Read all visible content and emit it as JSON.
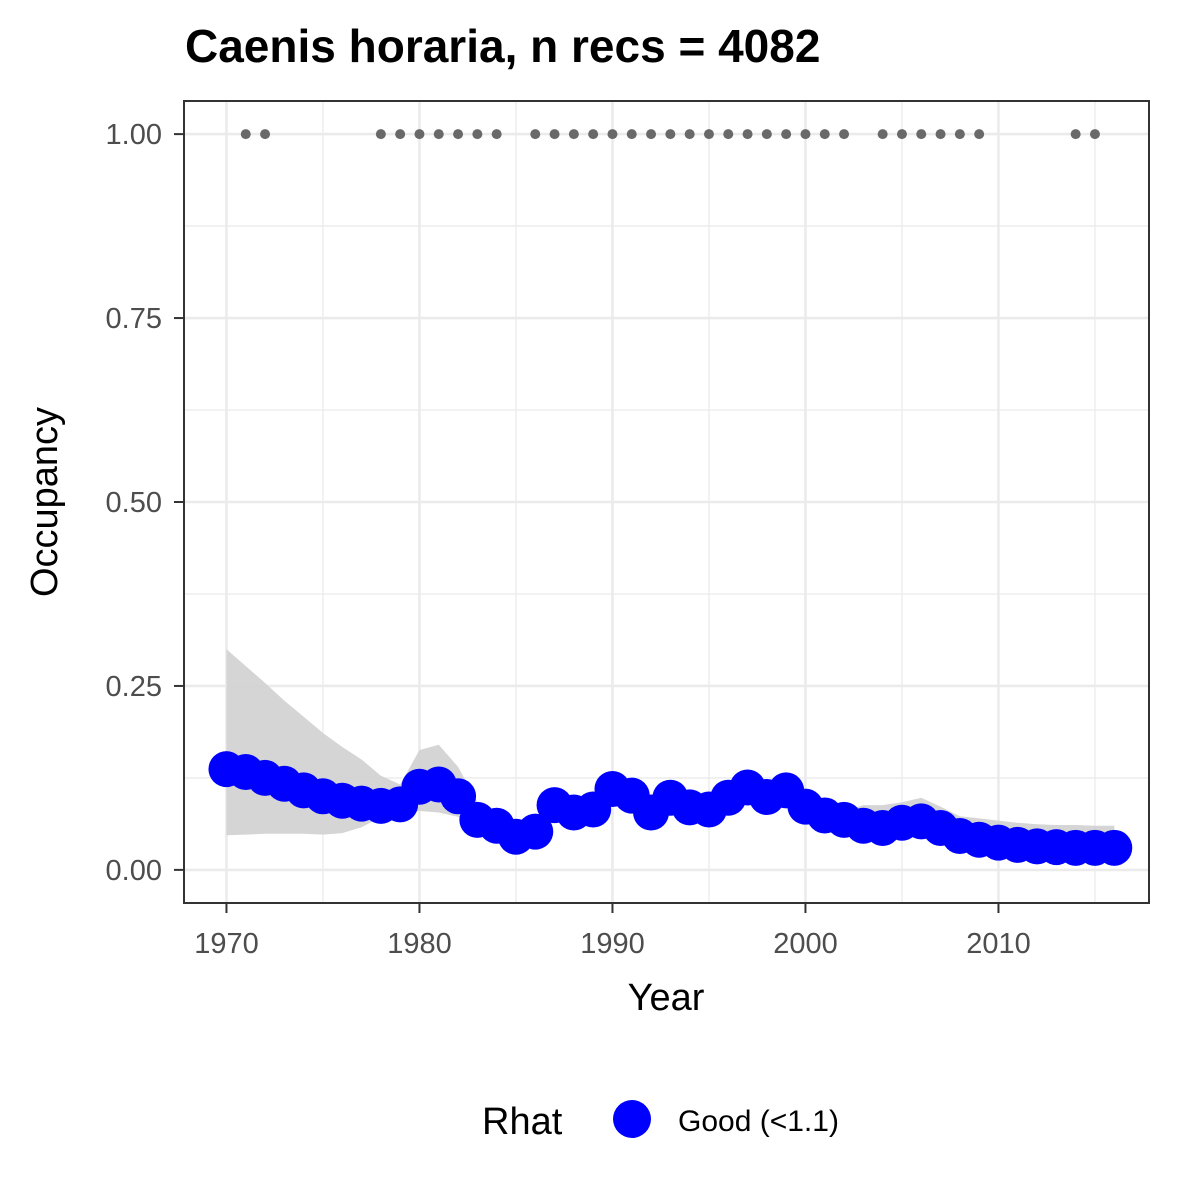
{
  "chart_data": {
    "type": "line",
    "title": "Caenis horaria, n recs = 4082",
    "xlabel": "Year",
    "ylabel": "Occupancy",
    "xlim": [
      1967.8,
      2017.8
    ],
    "ylim": [
      -0.045,
      1.045
    ],
    "x_ticks": [
      1970,
      1980,
      1990,
      2000,
      2010
    ],
    "x_tick_labels": [
      "1970",
      "1980",
      "1990",
      "2000",
      "2010"
    ],
    "y_ticks": [
      0,
      0.25,
      0.5,
      0.75,
      1.0
    ],
    "y_tick_labels": [
      "0.00",
      "0.25",
      "0.50",
      "0.75",
      "1.00"
    ],
    "grid": true,
    "legend": {
      "title": "Rhat",
      "position": "bottom",
      "entries": [
        {
          "label": "Good (<1.1)",
          "color": "#0000ff"
        }
      ]
    },
    "colors": {
      "series": "#0000ff",
      "ribbon": "#d3d3d3",
      "records": "#696969",
      "panel_border": "#333333",
      "grid": "#ebebeb"
    },
    "series": [
      {
        "years": [
          1970,
          1971,
          1972,
          1973,
          1974,
          1975,
          1976,
          1977,
          1978,
          1979,
          1980,
          1981,
          1982,
          1983,
          1984,
          1985,
          1986,
          1987,
          1988,
          1989,
          1990,
          1991,
          1992,
          1993,
          1994,
          1995,
          1996,
          1997,
          1998,
          1999,
          2000,
          2001,
          2002,
          2003,
          2004,
          2005,
          2006,
          2007,
          2008,
          2009,
          2010,
          2011,
          2012,
          2013,
          2014,
          2015,
          2016
        ],
        "values": [
          0.137,
          0.133,
          0.125,
          0.117,
          0.108,
          0.1,
          0.094,
          0.09,
          0.087,
          0.089,
          0.113,
          0.116,
          0.1,
          0.068,
          0.06,
          0.045,
          0.052,
          0.088,
          0.078,
          0.082,
          0.11,
          0.101,
          0.078,
          0.098,
          0.085,
          0.082,
          0.098,
          0.112,
          0.099,
          0.108,
          0.086,
          0.074,
          0.068,
          0.06,
          0.057,
          0.064,
          0.066,
          0.057,
          0.046,
          0.041,
          0.037,
          0.034,
          0.032,
          0.031,
          0.03,
          0.03,
          0.03
        ],
        "lower": [
          0.047,
          0.048,
          0.049,
          0.049,
          0.049,
          0.048,
          0.05,
          0.058,
          0.072,
          0.08,
          0.08,
          0.078,
          0.072,
          0.055,
          0.048,
          0.038,
          0.044,
          0.07,
          0.068,
          0.07,
          0.086,
          0.086,
          0.068,
          0.082,
          0.074,
          0.072,
          0.084,
          0.092,
          0.084,
          0.09,
          0.072,
          0.064,
          0.058,
          0.052,
          0.05,
          0.052,
          0.054,
          0.047,
          0.04,
          0.035,
          0.031,
          0.028,
          0.026,
          0.025,
          0.024,
          0.024,
          0.022
        ],
        "upper": [
          0.3,
          0.277,
          0.254,
          0.23,
          0.208,
          0.186,
          0.167,
          0.15,
          0.128,
          0.116,
          0.163,
          0.17,
          0.14,
          0.092,
          0.076,
          0.056,
          0.066,
          0.108,
          0.094,
          0.098,
          0.13,
          0.12,
          0.094,
          0.112,
          0.098,
          0.096,
          0.112,
          0.128,
          0.114,
          0.124,
          0.1,
          0.088,
          0.08,
          0.088,
          0.088,
          0.092,
          0.098,
          0.086,
          0.073,
          0.07,
          0.067,
          0.064,
          0.062,
          0.061,
          0.061,
          0.06,
          0.06
        ]
      }
    ],
    "record_years": [
      1971,
      1972,
      1978,
      1979,
      1980,
      1981,
      1982,
      1983,
      1984,
      1986,
      1987,
      1988,
      1989,
      1990,
      1991,
      1992,
      1993,
      1994,
      1995,
      1996,
      1997,
      1998,
      1999,
      2000,
      2001,
      2002,
      2004,
      2005,
      2006,
      2007,
      2008,
      2009,
      2014,
      2015
    ],
    "record_value": 1.0
  }
}
